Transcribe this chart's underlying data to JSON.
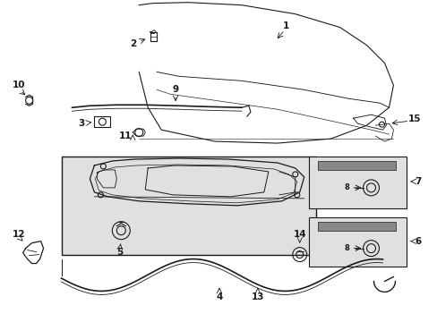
{
  "bg_color": "#ffffff",
  "line_color": "#1a1a1a",
  "gray_fill": "#e8e8e8",
  "box_fill": "#e0e0e0",
  "figsize": [
    4.89,
    3.6
  ],
  "dpi": 100
}
